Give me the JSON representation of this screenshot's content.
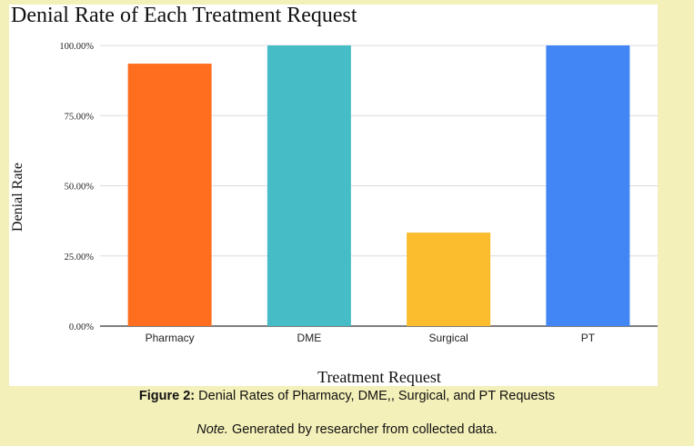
{
  "chart_data": {
    "type": "bar",
    "title": "Denial Rate of Each Treatment Request",
    "xlabel": "Treatment Request",
    "ylabel": "Denial Rate",
    "categories": [
      "Pharmacy",
      "DME",
      "Surgical",
      "PT"
    ],
    "values": [
      93.5,
      100,
      33.3,
      100
    ],
    "colors": [
      "#ff6d1f",
      "#46bdc6",
      "#fbbc2d",
      "#4285f4"
    ],
    "yticks": [
      "0.00%",
      "25.00%",
      "50.00%",
      "75.00%",
      "100.00%"
    ],
    "ylim": [
      0,
      100
    ],
    "grid": true,
    "legend": "none"
  },
  "caption": {
    "label": "Figure 2:",
    "text": " Denial Rates of Pharmacy, DME,, Surgical, and PT Requests"
  },
  "note": {
    "label": "Note.",
    "text": " Generated by researcher from collected data."
  }
}
